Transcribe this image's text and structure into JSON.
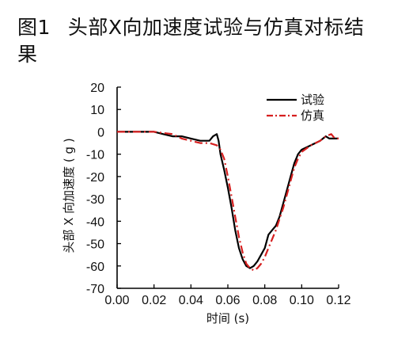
{
  "figure": {
    "label": "图1",
    "title": "头部X向加速度试验与仿真对标结果"
  },
  "chart_data": {
    "type": "line",
    "title": "图1 头部X向加速度试验与仿真对标结果",
    "xlabel": "时间 (s)",
    "ylabel": "头部 X 向加速度 ( g )",
    "xlim": [
      0,
      0.12
    ],
    "ylim": [
      -70,
      20
    ],
    "xticks": [
      "0.00",
      "0.02",
      "0.04",
      "0.06",
      "0.08",
      "0.10",
      "0.12"
    ],
    "yticks": [
      "20",
      "10",
      "0",
      "-10",
      "-20",
      "-30",
      "-40",
      "-50",
      "-60",
      "-70"
    ],
    "legend_position": "top-right",
    "grid": false,
    "colors": {
      "试验": "#000000",
      "仿真": "#d62020"
    },
    "series": [
      {
        "name": "试验",
        "style": "solid",
        "x": [
          0.0,
          0.01,
          0.02,
          0.025,
          0.03,
          0.035,
          0.04,
          0.045,
          0.048,
          0.05,
          0.052,
          0.054,
          0.055,
          0.056,
          0.058,
          0.06,
          0.062,
          0.064,
          0.066,
          0.068,
          0.07,
          0.072,
          0.074,
          0.076,
          0.078,
          0.08,
          0.082,
          0.084,
          0.086,
          0.088,
          0.09,
          0.092,
          0.094,
          0.096,
          0.098,
          0.1,
          0.105,
          0.11,
          0.113,
          0.115,
          0.118,
          0.12
        ],
        "y": [
          0,
          0,
          0,
          -1,
          -2,
          -2,
          -3,
          -4,
          -4,
          -4,
          -2,
          -1,
          -4,
          -10,
          -17,
          -25,
          -34,
          -44,
          -52,
          -57,
          -60,
          -61,
          -60,
          -58,
          -55,
          -52,
          -46,
          -44,
          -42,
          -38,
          -32,
          -26,
          -20,
          -14,
          -10,
          -8,
          -6,
          -4,
          -2,
          -3,
          -3,
          -3
        ]
      },
      {
        "name": "仿真",
        "style": "dash-dot",
        "x": [
          0.0,
          0.01,
          0.02,
          0.03,
          0.035,
          0.04,
          0.045,
          0.05,
          0.054,
          0.056,
          0.058,
          0.06,
          0.062,
          0.064,
          0.066,
          0.068,
          0.07,
          0.072,
          0.074,
          0.076,
          0.078,
          0.08,
          0.082,
          0.084,
          0.086,
          0.088,
          0.09,
          0.092,
          0.094,
          0.096,
          0.098,
          0.1,
          0.105,
          0.11,
          0.113,
          0.116,
          0.118,
          0.12
        ],
        "y": [
          0,
          0,
          0,
          -1,
          -3,
          -4,
          -5,
          -5,
          -6,
          -8,
          -12,
          -20,
          -29,
          -38,
          -47,
          -54,
          -59,
          -61,
          -62,
          -61,
          -59,
          -56,
          -52,
          -48,
          -44,
          -39,
          -34,
          -28,
          -22,
          -16,
          -12,
          -9,
          -6,
          -4,
          -2,
          -1,
          -3,
          -3
        ]
      }
    ]
  }
}
